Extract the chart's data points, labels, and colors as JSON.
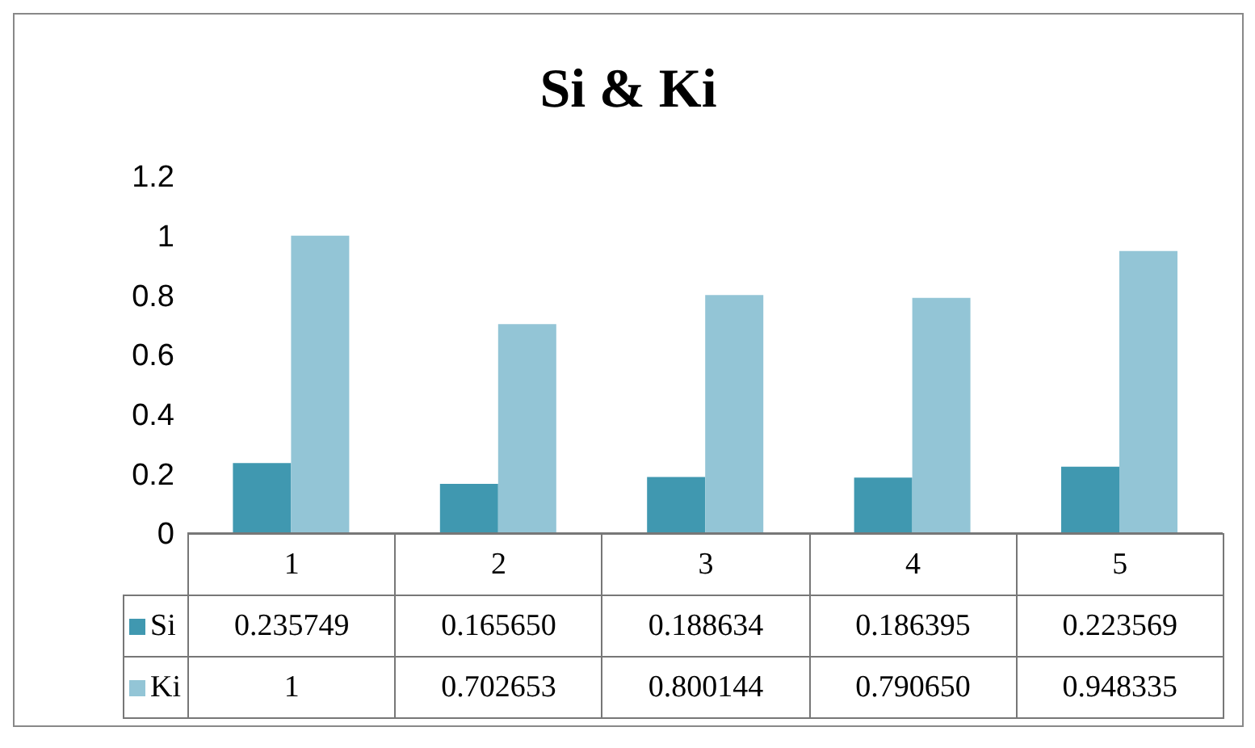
{
  "chart_data": {
    "type": "bar",
    "title": "Si & Ki",
    "categories": [
      "1",
      "2",
      "3",
      "4",
      "5"
    ],
    "series": [
      {
        "name": "Si",
        "color": "#4098b0",
        "values": [
          0.235749,
          0.16565,
          0.188634,
          0.186395,
          0.223569
        ],
        "value_labels": [
          "0.235749",
          "0.165650",
          "0.188634",
          "0.186395",
          "0.223569"
        ]
      },
      {
        "name": "Ki",
        "color": "#93c5d6",
        "values": [
          1,
          0.702653,
          0.800144,
          0.79065,
          0.948335
        ],
        "value_labels": [
          "1",
          "0.702653",
          "0.800144",
          "0.790650",
          "0.948335"
        ]
      }
    ],
    "ylim": [
      0,
      1.2
    ],
    "yticks": [
      0,
      0.2,
      0.4,
      0.6,
      0.8,
      1,
      1.2
    ],
    "grid": false,
    "legend": "bottom"
  }
}
